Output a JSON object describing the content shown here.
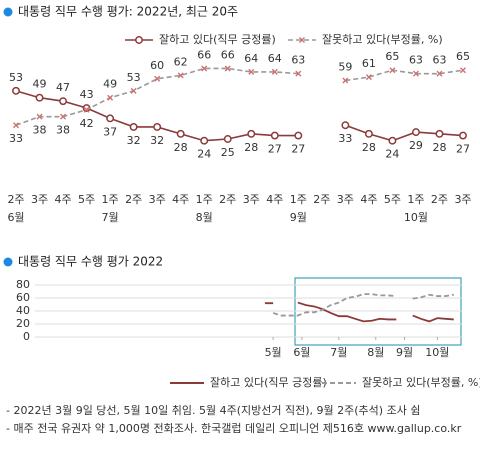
{
  "chart_data": [
    {
      "type": "line",
      "title": "대통령 직무 수행 평가: 2022년, 최근 20주",
      "categories": [
        "2주",
        "3주",
        "4주",
        "5주",
        "1주",
        "2주",
        "3주",
        "4주",
        "1주",
        "2주",
        "3주",
        "4주",
        "1주",
        "2주",
        "3주",
        "4주",
        "5주",
        "1주",
        "2주",
        "3주"
      ],
      "months": [
        "6월",
        null,
        null,
        null,
        "7월",
        null,
        null,
        null,
        "8월",
        null,
        null,
        null,
        "9월",
        null,
        null,
        null,
        null,
        "10월",
        null,
        null
      ],
      "series": [
        {
          "name": "잘하고 있다(직무 긍정률)",
          "color": "#8b3a3a",
          "marker": "circle",
          "values": [
            53,
            49,
            47,
            43,
            37,
            32,
            32,
            28,
            24,
            25,
            28,
            27,
            27,
            null,
            33,
            28,
            24,
            29,
            28,
            27
          ]
        },
        {
          "name": "잘못하고 있다(부정률, %)",
          "color": "#999999",
          "marker_color": "#d07070",
          "marker": "x",
          "dashed": true,
          "values": [
            33,
            38,
            38,
            42,
            49,
            53,
            60,
            62,
            66,
            66,
            64,
            64,
            63,
            null,
            59,
            61,
            65,
            63,
            63,
            65
          ]
        }
      ],
      "ylim": [
        0,
        100
      ]
    },
    {
      "type": "line",
      "title": "대통령 직무 수행 평가 2022",
      "x": [
        19,
        20,
        21,
        23,
        24,
        25,
        26,
        27,
        28,
        29,
        30,
        31,
        32,
        33,
        34,
        35,
        36,
        37,
        38,
        39,
        40,
        41,
        42
      ],
      "xlim": [
        -9,
        43
      ],
      "xticks": [
        {
          "value": 20,
          "label": "5월"
        },
        {
          "value": 23.5,
          "label": "6월"
        },
        {
          "value": 28,
          "label": "7월"
        },
        {
          "value": 32.5,
          "label": "8월"
        },
        {
          "value": 36,
          "label": "9월"
        },
        {
          "value": 40,
          "label": "10월"
        }
      ],
      "ylim": [
        0,
        80
      ],
      "yticks": [
        0,
        20,
        40,
        60,
        80
      ],
      "grid": true,
      "series": [
        {
          "name": "잘하고 있다(직무 긍정률)",
          "color": "#8b3a3a",
          "values": [
            52,
            52,
            null,
            53,
            49,
            47,
            43,
            37,
            32,
            32,
            28,
            24,
            25,
            28,
            27,
            27,
            null,
            33,
            28,
            24,
            29,
            28,
            27
          ]
        },
        {
          "name": "잘못하고 있다(부정률, %)",
          "color": "#999999",
          "dashed": true,
          "values": [
            null,
            37,
            33,
            33,
            38,
            38,
            42,
            49,
            53,
            60,
            62,
            66,
            66,
            64,
            64,
            63,
            null,
            59,
            61,
            65,
            63,
            63,
            65
          ]
        }
      ]
    }
  ],
  "footnotes": [
    "- 2022년 3월 9일 당선, 5월 10일 취임. 5월 4주(지방선거 직전), 9월 2주(추석) 조사 쉼",
    "- 매주 전국 유권자 약 1,000명 전화조사. 한국갤럽 데일리 오피니언 제516호 www.gallup.co.kr"
  ]
}
